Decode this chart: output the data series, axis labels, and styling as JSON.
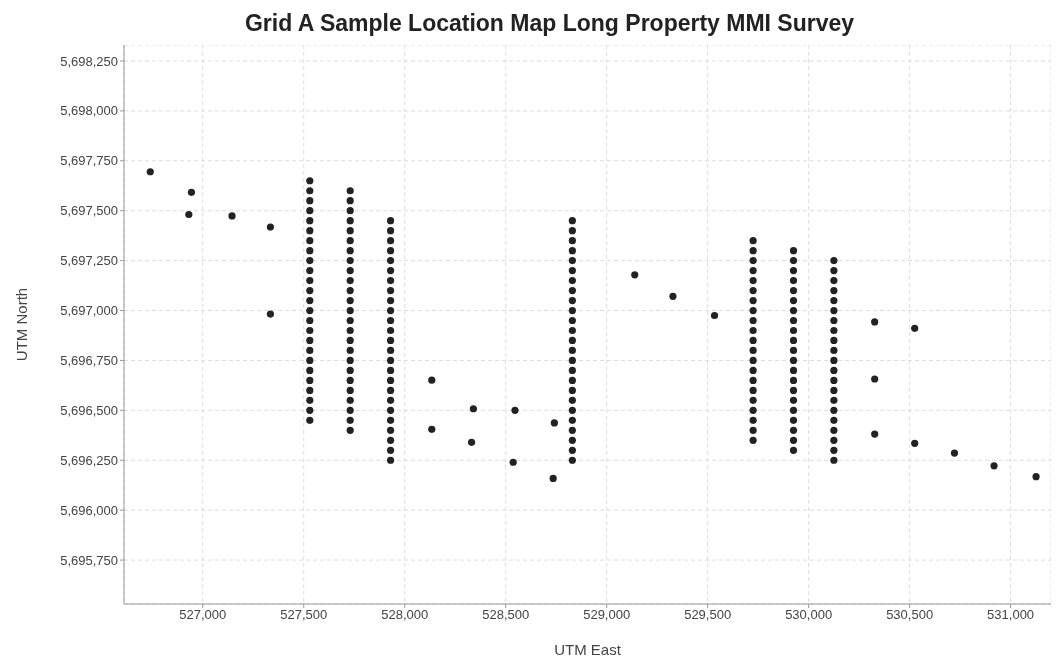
{
  "chart_data": {
    "type": "scatter",
    "title": "Grid A Sample Location Map Long Property MMI Survey",
    "xlabel": "UTM East",
    "ylabel": "UTM North",
    "xlim": [
      526610,
      531200
    ],
    "xticks": [
      {
        "value": 527000,
        "label": "527,000"
      },
      {
        "value": 527500,
        "label": "527,500"
      },
      {
        "value": 528000,
        "label": "528,000"
      },
      {
        "value": 528500,
        "label": "528,500"
      },
      {
        "value": 529000,
        "label": "529,000"
      },
      {
        "value": 529500,
        "label": "529,500"
      },
      {
        "value": 530000,
        "label": "530,000"
      },
      {
        "value": 530500,
        "label": "530,500"
      },
      {
        "value": 531000,
        "label": "531,000"
      }
    ],
    "ylim": [
      5695530,
      5698330
    ],
    "yticks": [
      {
        "value": 5695750,
        "label": "5,695,750"
      },
      {
        "value": 5696000,
        "label": "5,696,000"
      },
      {
        "value": 5696250,
        "label": "5,696,250"
      },
      {
        "value": 5696500,
        "label": "5,696,500"
      },
      {
        "value": 5696750,
        "label": "5,696,750"
      },
      {
        "value": 5697000,
        "label": "5,697,000"
      },
      {
        "value": 5697250,
        "label": "5,697,250"
      },
      {
        "value": 5697500,
        "label": "5,697,500"
      },
      {
        "value": 5697750,
        "label": "5,697,750"
      },
      {
        "value": 5698000,
        "label": "5,698,000"
      },
      {
        "value": 5698250,
        "label": "5,698,250"
      }
    ],
    "grid": true,
    "marker": "circle",
    "series": [
      {
        "color": "#222222",
        "x": [
          526740,
          526944,
          526931,
          527145,
          527335,
          527335,
          528134,
          528134,
          528340,
          528331,
          528546,
          528537,
          528741,
          528735,
          529139,
          529328,
          529534,
          530327,
          530525,
          530327,
          530327,
          530525,
          530722,
          530918,
          531126
        ],
        "values": [
          5697695,
          5697592,
          5697481,
          5697474,
          5697418,
          5696982,
          5696651,
          5696405,
          5696508,
          5696340,
          5696500,
          5696240,
          5696437,
          5696159,
          5697179,
          5697071,
          5696975,
          5696943,
          5696911,
          5696657,
          5696381,
          5696335,
          5696286,
          5696222,
          5696168
        ]
      },
      {
        "color": "#222222",
        "x": [
          527530,
          527530,
          527530,
          527530,
          527530,
          527530,
          527530,
          527530,
          527530,
          527530,
          527530,
          527530,
          527530,
          527530,
          527530,
          527530,
          527530,
          527530,
          527530,
          527530,
          527530,
          527530,
          527530,
          527530,
          527530
        ],
        "values": [
          5697650,
          5697600,
          5697550,
          5697500,
          5697450,
          5697400,
          5697350,
          5697300,
          5697250,
          5697200,
          5697150,
          5697100,
          5697050,
          5697000,
          5696950,
          5696900,
          5696850,
          5696800,
          5696750,
          5696700,
          5696650,
          5696600,
          5696550,
          5696500,
          5696450
        ]
      },
      {
        "color": "#222222",
        "x": [
          527730,
          527730,
          527730,
          527730,
          527730,
          527730,
          527730,
          527730,
          527730,
          527730,
          527730,
          527730,
          527730,
          527730,
          527730,
          527730,
          527730,
          527730,
          527730,
          527730,
          527730,
          527730,
          527730,
          527730,
          527730
        ],
        "values": [
          5697600,
          5697550,
          5697500,
          5697450,
          5697400,
          5697350,
          5697300,
          5697250,
          5697200,
          5697150,
          5697100,
          5697050,
          5697000,
          5696950,
          5696900,
          5696850,
          5696800,
          5696750,
          5696700,
          5696650,
          5696600,
          5696550,
          5696500,
          5696450,
          5696400
        ]
      },
      {
        "color": "#222222",
        "x": [
          527930,
          527930,
          527930,
          527930,
          527930,
          527930,
          527930,
          527930,
          527930,
          527930,
          527930,
          527930,
          527930,
          527930,
          527930,
          527930,
          527930,
          527930,
          527930,
          527930,
          527930,
          527930,
          527930,
          527930,
          527930
        ],
        "values": [
          5697450,
          5697400,
          5697350,
          5697300,
          5697250,
          5697200,
          5697150,
          5697100,
          5697050,
          5697000,
          5696950,
          5696900,
          5696850,
          5696800,
          5696750,
          5696700,
          5696650,
          5696600,
          5696550,
          5696500,
          5696450,
          5696400,
          5696350,
          5696300,
          5696250
        ]
      },
      {
        "color": "#222222",
        "x": [
          528830,
          528830,
          528830,
          528830,
          528830,
          528830,
          528830,
          528830,
          528830,
          528830,
          528830,
          528830,
          528830,
          528830,
          528830,
          528830,
          528830,
          528830,
          528830,
          528830,
          528830,
          528830,
          528830,
          528830,
          528830
        ],
        "values": [
          5697450,
          5697400,
          5697350,
          5697300,
          5697250,
          5697200,
          5697150,
          5697100,
          5697050,
          5697000,
          5696950,
          5696900,
          5696850,
          5696800,
          5696750,
          5696700,
          5696650,
          5696600,
          5696550,
          5696500,
          5696450,
          5696400,
          5696350,
          5696300,
          5696250
        ]
      },
      {
        "color": "#222222",
        "x": [
          529725,
          529725,
          529725,
          529725,
          529725,
          529725,
          529725,
          529725,
          529725,
          529725,
          529725,
          529725,
          529725,
          529725,
          529725,
          529725,
          529725,
          529725,
          529725,
          529725,
          529725
        ],
        "values": [
          5697350,
          5697300,
          5697250,
          5697200,
          5697150,
          5697100,
          5697050,
          5697000,
          5696950,
          5696900,
          5696850,
          5696800,
          5696750,
          5696700,
          5696650,
          5696600,
          5696550,
          5696500,
          5696450,
          5696400,
          5696350
        ]
      },
      {
        "color": "#222222",
        "x": [
          529925,
          529925,
          529925,
          529925,
          529925,
          529925,
          529925,
          529925,
          529925,
          529925,
          529925,
          529925,
          529925,
          529925,
          529925,
          529925,
          529925,
          529925,
          529925,
          529925,
          529925
        ],
        "values": [
          5697300,
          5697250,
          5697200,
          5697150,
          5697100,
          5697050,
          5697000,
          5696950,
          5696900,
          5696850,
          5696800,
          5696750,
          5696700,
          5696650,
          5696600,
          5696550,
          5696500,
          5696450,
          5696400,
          5696350,
          5696300
        ]
      },
      {
        "color": "#222222",
        "x": [
          530125,
          530125,
          530125,
          530125,
          530125,
          530125,
          530125,
          530125,
          530125,
          530125,
          530125,
          530125,
          530125,
          530125,
          530125,
          530125,
          530125,
          530125,
          530125,
          530125,
          530125
        ],
        "values": [
          5697250,
          5697200,
          5697150,
          5697100,
          5697050,
          5697000,
          5696950,
          5696900,
          5696850,
          5696800,
          5696750,
          5696700,
          5696650,
          5696600,
          5696550,
          5696500,
          5696450,
          5696400,
          5696350,
          5696300,
          5696250
        ]
      }
    ]
  }
}
